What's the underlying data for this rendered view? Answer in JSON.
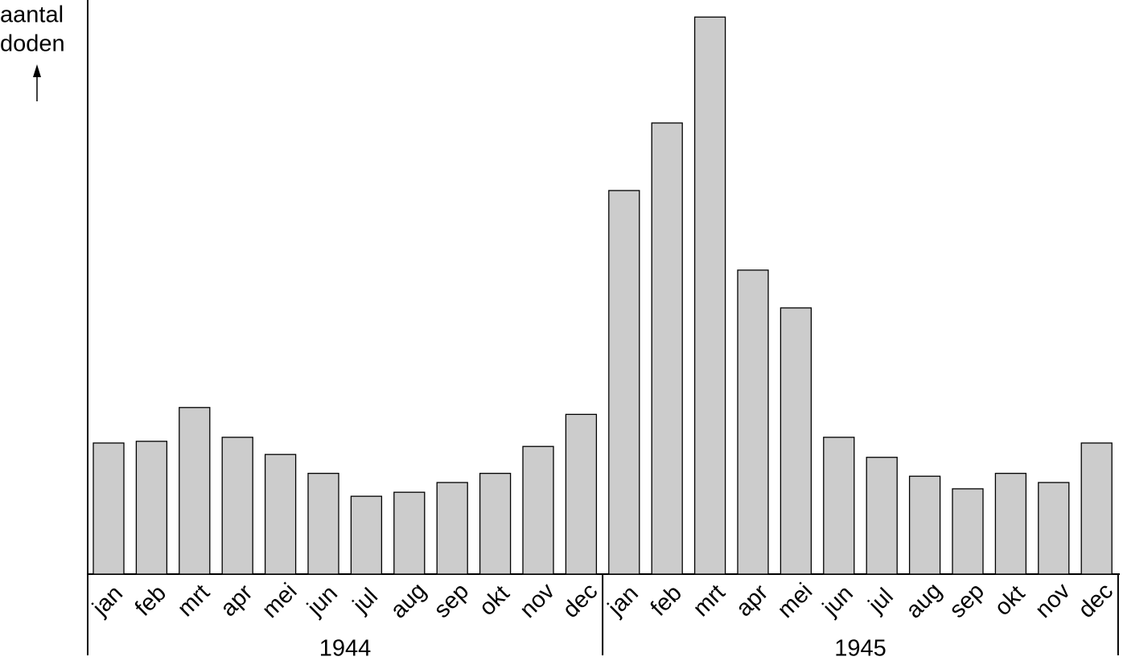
{
  "chart_data": {
    "type": "bar",
    "ylabel": [
      "aantal",
      "doden"
    ],
    "categories": [
      "jan",
      "feb",
      "mrt",
      "apr",
      "mei",
      "jun",
      "jul",
      "aug",
      "sep",
      "okt",
      "nov",
      "dec",
      "jan",
      "feb",
      "mrt",
      "apr",
      "mei",
      "jun",
      "jul",
      "aug",
      "sep",
      "okt",
      "nov",
      "dec"
    ],
    "groups": [
      {
        "label": "1944",
        "size": 12
      },
      {
        "label": "1945",
        "size": 12
      }
    ],
    "values": [
      22.9,
      23.2,
      29.1,
      23.9,
      20.9,
      17.6,
      13.6,
      14.3,
      16.0,
      17.6,
      22.3,
      27.9,
      67.0,
      78.8,
      97.3,
      53.1,
      46.5,
      23.9,
      20.4,
      17.1,
      14.9,
      17.6,
      16.0,
      22.9
    ],
    "color": "#cccccc",
    "ylim": [
      0,
      100
    ],
    "grid": false
  }
}
